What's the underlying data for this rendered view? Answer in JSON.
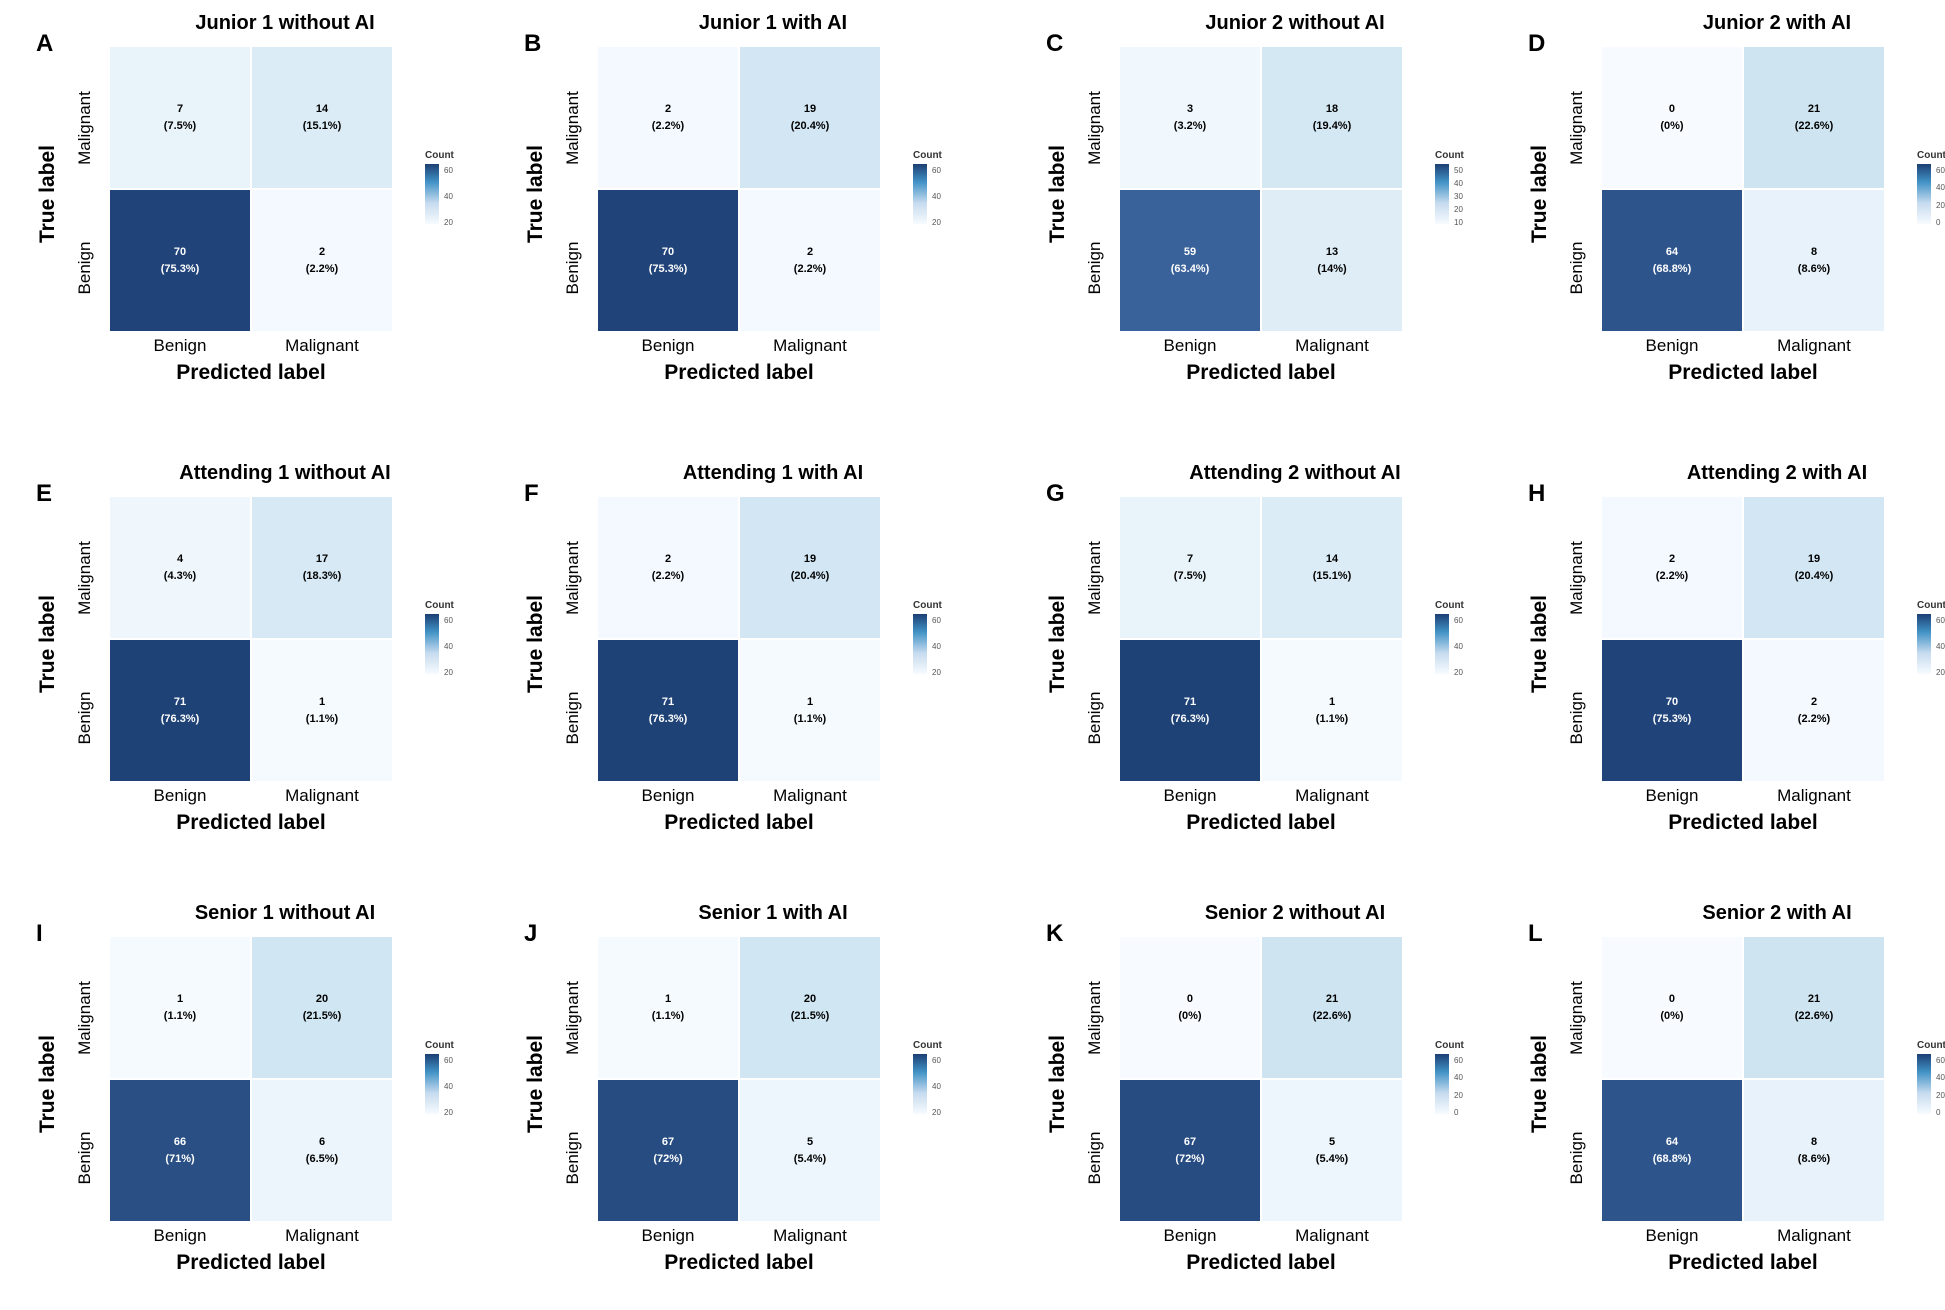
{
  "figure": {
    "ylabel": "True label",
    "xlabel": "Predicted label",
    "legend_title": "Count",
    "colors": {
      "low": "#f7fbff",
      "high": "#1c3f73"
    }
  },
  "chart_data": [
    {
      "type": "heatmap",
      "panel": "A",
      "title": "Junior 1 without AI",
      "xlabel": "Predicted label",
      "ylabel": "True label",
      "x_categories": [
        "Benign",
        "Malignant"
      ],
      "y_categories": [
        "Malignant",
        "Benign"
      ],
      "cells": [
        {
          "true": "Malignant",
          "pred": "Benign",
          "count": "7",
          "pct": "(7.5%)"
        },
        {
          "true": "Malignant",
          "pred": "Malignant",
          "count": "14",
          "pct": "(15.1%)"
        },
        {
          "true": "Benign",
          "pred": "Benign",
          "count": "70",
          "pct": "(75.3%)"
        },
        {
          "true": "Benign",
          "pred": "Malignant",
          "count": "2",
          "pct": "(2.2%)"
        }
      ],
      "legend_ticks": [
        "60",
        "40",
        "20"
      ]
    },
    {
      "type": "heatmap",
      "panel": "B",
      "title": "Junior 1 with AI",
      "xlabel": "Predicted label",
      "ylabel": "True label",
      "x_categories": [
        "Benign",
        "Malignant"
      ],
      "y_categories": [
        "Malignant",
        "Benign"
      ],
      "cells": [
        {
          "true": "Malignant",
          "pred": "Benign",
          "count": "2",
          "pct": "(2.2%)"
        },
        {
          "true": "Malignant",
          "pred": "Malignant",
          "count": "19",
          "pct": "(20.4%)"
        },
        {
          "true": "Benign",
          "pred": "Benign",
          "count": "70",
          "pct": "(75.3%)"
        },
        {
          "true": "Benign",
          "pred": "Malignant",
          "count": "2",
          "pct": "(2.2%)"
        }
      ],
      "legend_ticks": [
        "60",
        "40",
        "20"
      ]
    },
    {
      "type": "heatmap",
      "panel": "C",
      "title": "Junior 2 without AI",
      "xlabel": "Predicted label",
      "ylabel": "True label",
      "x_categories": [
        "Benign",
        "Malignant"
      ],
      "y_categories": [
        "Malignant",
        "Benign"
      ],
      "cells": [
        {
          "true": "Malignant",
          "pred": "Benign",
          "count": "3",
          "pct": "(3.2%)"
        },
        {
          "true": "Malignant",
          "pred": "Malignant",
          "count": "18",
          "pct": "(19.4%)"
        },
        {
          "true": "Benign",
          "pred": "Benign",
          "count": "59",
          "pct": "(63.4%)"
        },
        {
          "true": "Benign",
          "pred": "Malignant",
          "count": "13",
          "pct": "(14%)"
        }
      ],
      "legend_ticks": [
        "50",
        "40",
        "30",
        "20",
        "10"
      ]
    },
    {
      "type": "heatmap",
      "panel": "D",
      "title": "Junior 2 with AI",
      "xlabel": "Predicted label",
      "ylabel": "True label",
      "x_categories": [
        "Benign",
        "Malignant"
      ],
      "y_categories": [
        "Malignant",
        "Benign"
      ],
      "cells": [
        {
          "true": "Malignant",
          "pred": "Benign",
          "count": "0",
          "pct": "(0%)"
        },
        {
          "true": "Malignant",
          "pred": "Malignant",
          "count": "21",
          "pct": "(22.6%)"
        },
        {
          "true": "Benign",
          "pred": "Benign",
          "count": "64",
          "pct": "(68.8%)"
        },
        {
          "true": "Benign",
          "pred": "Malignant",
          "count": "8",
          "pct": "(8.6%)"
        }
      ],
      "legend_ticks": [
        "60",
        "40",
        "20",
        "0"
      ]
    },
    {
      "type": "heatmap",
      "panel": "E",
      "title": "Attending 1 without AI",
      "xlabel": "Predicted label",
      "ylabel": "True label",
      "x_categories": [
        "Benign",
        "Malignant"
      ],
      "y_categories": [
        "Malignant",
        "Benign"
      ],
      "cells": [
        {
          "true": "Malignant",
          "pred": "Benign",
          "count": "4",
          "pct": "(4.3%)"
        },
        {
          "true": "Malignant",
          "pred": "Malignant",
          "count": "17",
          "pct": "(18.3%)"
        },
        {
          "true": "Benign",
          "pred": "Benign",
          "count": "71",
          "pct": "(76.3%)"
        },
        {
          "true": "Benign",
          "pred": "Malignant",
          "count": "1",
          "pct": "(1.1%)"
        }
      ],
      "legend_ticks": [
        "60",
        "40",
        "20"
      ]
    },
    {
      "type": "heatmap",
      "panel": "F",
      "title": "Attending 1 with AI",
      "xlabel": "Predicted label",
      "ylabel": "True label",
      "x_categories": [
        "Benign",
        "Malignant"
      ],
      "y_categories": [
        "Malignant",
        "Benign"
      ],
      "cells": [
        {
          "true": "Malignant",
          "pred": "Benign",
          "count": "2",
          "pct": "(2.2%)"
        },
        {
          "true": "Malignant",
          "pred": "Malignant",
          "count": "19",
          "pct": "(20.4%)"
        },
        {
          "true": "Benign",
          "pred": "Benign",
          "count": "71",
          "pct": "(76.3%)"
        },
        {
          "true": "Benign",
          "pred": "Malignant",
          "count": "1",
          "pct": "(1.1%)"
        }
      ],
      "legend_ticks": [
        "60",
        "40",
        "20"
      ]
    },
    {
      "type": "heatmap",
      "panel": "G",
      "title": "Attending 2 without AI",
      "xlabel": "Predicted label",
      "ylabel": "True label",
      "x_categories": [
        "Benign",
        "Malignant"
      ],
      "y_categories": [
        "Malignant",
        "Benign"
      ],
      "cells": [
        {
          "true": "Malignant",
          "pred": "Benign",
          "count": "7",
          "pct": "(7.5%)"
        },
        {
          "true": "Malignant",
          "pred": "Malignant",
          "count": "14",
          "pct": "(15.1%)"
        },
        {
          "true": "Benign",
          "pred": "Benign",
          "count": "71",
          "pct": "(76.3%)"
        },
        {
          "true": "Benign",
          "pred": "Malignant",
          "count": "1",
          "pct": "(1.1%)"
        }
      ],
      "legend_ticks": [
        "60",
        "40",
        "20"
      ]
    },
    {
      "type": "heatmap",
      "panel": "H",
      "title": "Attending 2 with AI",
      "xlabel": "Predicted label",
      "ylabel": "True label",
      "x_categories": [
        "Benign",
        "Malignant"
      ],
      "y_categories": [
        "Malignant",
        "Benign"
      ],
      "cells": [
        {
          "true": "Malignant",
          "pred": "Benign",
          "count": "2",
          "pct": "(2.2%)"
        },
        {
          "true": "Malignant",
          "pred": "Malignant",
          "count": "19",
          "pct": "(20.4%)"
        },
        {
          "true": "Benign",
          "pred": "Benign",
          "count": "70",
          "pct": "(75.3%)"
        },
        {
          "true": "Benign",
          "pred": "Malignant",
          "count": "2",
          "pct": "(2.2%)"
        }
      ],
      "legend_ticks": [
        "60",
        "40",
        "20"
      ]
    },
    {
      "type": "heatmap",
      "panel": "I",
      "title": "Senior 1 without AI",
      "xlabel": "Predicted label",
      "ylabel": "True label",
      "x_categories": [
        "Benign",
        "Malignant"
      ],
      "y_categories": [
        "Malignant",
        "Benign"
      ],
      "cells": [
        {
          "true": "Malignant",
          "pred": "Benign",
          "count": "1",
          "pct": "(1.1%)"
        },
        {
          "true": "Malignant",
          "pred": "Malignant",
          "count": "20",
          "pct": "(21.5%)"
        },
        {
          "true": "Benign",
          "pred": "Benign",
          "count": "66",
          "pct": "(71%)"
        },
        {
          "true": "Benign",
          "pred": "Malignant",
          "count": "6",
          "pct": "(6.5%)"
        }
      ],
      "legend_ticks": [
        "60",
        "40",
        "20"
      ]
    },
    {
      "type": "heatmap",
      "panel": "J",
      "title": "Senior 1 with AI",
      "xlabel": "Predicted label",
      "ylabel": "True label",
      "x_categories": [
        "Benign",
        "Malignant"
      ],
      "y_categories": [
        "Malignant",
        "Benign"
      ],
      "cells": [
        {
          "true": "Malignant",
          "pred": "Benign",
          "count": "1",
          "pct": "(1.1%)"
        },
        {
          "true": "Malignant",
          "pred": "Malignant",
          "count": "20",
          "pct": "(21.5%)"
        },
        {
          "true": "Benign",
          "pred": "Benign",
          "count": "67",
          "pct": "(72%)"
        },
        {
          "true": "Benign",
          "pred": "Malignant",
          "count": "5",
          "pct": "(5.4%)"
        }
      ],
      "legend_ticks": [
        "60",
        "40",
        "20"
      ]
    },
    {
      "type": "heatmap",
      "panel": "K",
      "title": "Senior 2 without AI",
      "xlabel": "Predicted label",
      "ylabel": "True label",
      "x_categories": [
        "Benign",
        "Malignant"
      ],
      "y_categories": [
        "Malignant",
        "Benign"
      ],
      "cells": [
        {
          "true": "Malignant",
          "pred": "Benign",
          "count": "0",
          "pct": "(0%)"
        },
        {
          "true": "Malignant",
          "pred": "Malignant",
          "count": "21",
          "pct": "(22.6%)"
        },
        {
          "true": "Benign",
          "pred": "Benign",
          "count": "67",
          "pct": "(72%)"
        },
        {
          "true": "Benign",
          "pred": "Malignant",
          "count": "5",
          "pct": "(5.4%)"
        }
      ],
      "legend_ticks": [
        "60",
        "40",
        "20",
        "0"
      ]
    },
    {
      "type": "heatmap",
      "panel": "L",
      "title": "Senior 2 with AI",
      "xlabel": "Predicted label",
      "ylabel": "True label",
      "x_categories": [
        "Benign",
        "Malignant"
      ],
      "y_categories": [
        "Malignant",
        "Benign"
      ],
      "cells": [
        {
          "true": "Malignant",
          "pred": "Benign",
          "count": "0",
          "pct": "(0%)"
        },
        {
          "true": "Malignant",
          "pred": "Malignant",
          "count": "21",
          "pct": "(22.6%)"
        },
        {
          "true": "Benign",
          "pred": "Benign",
          "count": "64",
          "pct": "(68.8%)"
        },
        {
          "true": "Benign",
          "pred": "Malignant",
          "count": "8",
          "pct": "(8.6%)"
        }
      ],
      "legend_ticks": [
        "60",
        "40",
        "20",
        "0"
      ]
    }
  ]
}
